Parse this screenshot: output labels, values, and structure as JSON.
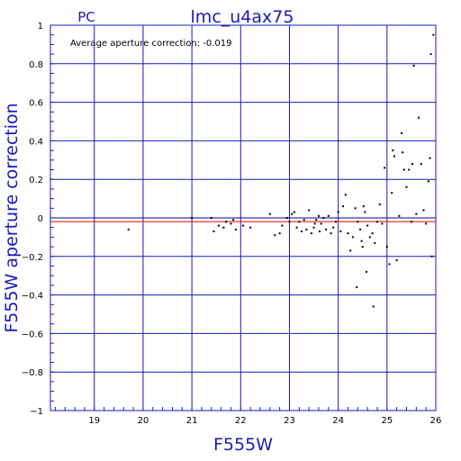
{
  "chart_data": {
    "type": "scatter",
    "instrument_label": "PC",
    "title": "lmc_u4ax75",
    "annotation": "Average aperture correction: -0.019",
    "xlabel": "F555W",
    "ylabel": "F555W aperture correction",
    "xlim": [
      18.1,
      26.0
    ],
    "ylim": [
      -1,
      1
    ],
    "x_ticks": [
      19,
      20,
      21,
      22,
      23,
      24,
      25,
      26
    ],
    "y_ticks": [
      -1,
      -0.8,
      -0.6,
      -0.4,
      -0.2,
      0,
      0.2,
      0.4,
      0.6,
      0.8,
      1
    ],
    "y_tick_labels": [
      "−1",
      "−0.8",
      "−0.6",
      "−0.4",
      "−0.2",
      "0",
      "0.2",
      "0.4",
      "0.6",
      "0.8",
      "1"
    ],
    "grid": true,
    "reference_lines": [
      {
        "y": 0,
        "color": "#0000aa"
      },
      {
        "y": -0.019,
        "color": "#e00000"
      }
    ],
    "point_color": "#000000",
    "points": [
      [
        19.7,
        -0.06
      ],
      [
        21.0,
        0.0
      ],
      [
        21.4,
        0.0
      ],
      [
        21.45,
        -0.07
      ],
      [
        21.55,
        -0.04
      ],
      [
        21.65,
        -0.05
      ],
      [
        21.7,
        -0.02
      ],
      [
        21.8,
        -0.03
      ],
      [
        21.85,
        -0.01
      ],
      [
        21.9,
        -0.06
      ],
      [
        22.05,
        -0.04
      ],
      [
        22.2,
        -0.05
      ],
      [
        22.6,
        0.02
      ],
      [
        22.7,
        -0.09
      ],
      [
        22.8,
        -0.08
      ],
      [
        22.85,
        -0.04
      ],
      [
        22.95,
        0.0
      ],
      [
        23.0,
        -0.02
      ],
      [
        23.05,
        0.02
      ],
      [
        23.1,
        0.03
      ],
      [
        23.15,
        -0.05
      ],
      [
        23.2,
        -0.02
      ],
      [
        23.25,
        -0.07
      ],
      [
        23.3,
        -0.01
      ],
      [
        23.35,
        -0.06
      ],
      [
        23.4,
        0.04
      ],
      [
        23.45,
        -0.08
      ],
      [
        23.5,
        -0.05
      ],
      [
        23.52,
        -0.03
      ],
      [
        23.55,
        -0.01
      ],
      [
        23.6,
        0.01
      ],
      [
        23.62,
        -0.07
      ],
      [
        23.65,
        -0.03
      ],
      [
        23.7,
        0.0
      ],
      [
        23.75,
        -0.06
      ],
      [
        23.8,
        0.01
      ],
      [
        23.85,
        -0.08
      ],
      [
        23.9,
        -0.05
      ],
      [
        23.95,
        -0.02
      ],
      [
        24.0,
        0.03
      ],
      [
        24.05,
        -0.07
      ],
      [
        24.1,
        0.06
      ],
      [
        24.15,
        0.12
      ],
      [
        24.2,
        -0.08
      ],
      [
        24.25,
        -0.17
      ],
      [
        24.3,
        -0.1
      ],
      [
        24.35,
        0.05
      ],
      [
        24.38,
        -0.36
      ],
      [
        24.4,
        -0.02
      ],
      [
        24.45,
        -0.06
      ],
      [
        24.48,
        -0.12
      ],
      [
        24.5,
        -0.15
      ],
      [
        24.52,
        0.06
      ],
      [
        24.55,
        0.03
      ],
      [
        24.58,
        -0.28
      ],
      [
        24.6,
        -0.04
      ],
      [
        24.65,
        -0.1
      ],
      [
        24.7,
        -0.08
      ],
      [
        24.72,
        -0.46
      ],
      [
        24.75,
        -0.13
      ],
      [
        24.8,
        -0.02
      ],
      [
        24.85,
        0.07
      ],
      [
        24.9,
        -0.03
      ],
      [
        24.95,
        0.26
      ],
      [
        25.0,
        -0.15
      ],
      [
        25.05,
        -0.24
      ],
      [
        25.1,
        0.13
      ],
      [
        25.12,
        0.35
      ],
      [
        25.15,
        0.32
      ],
      [
        25.2,
        -0.22
      ],
      [
        25.25,
        0.01
      ],
      [
        25.3,
        0.44
      ],
      [
        25.32,
        0.34
      ],
      [
        25.35,
        0.25
      ],
      [
        25.4,
        0.16
      ],
      [
        25.45,
        0.25
      ],
      [
        25.5,
        -0.02
      ],
      [
        25.52,
        0.28
      ],
      [
        25.55,
        0.79
      ],
      [
        25.6,
        0.02
      ],
      [
        25.65,
        0.52
      ],
      [
        25.7,
        0.28
      ],
      [
        25.75,
        0.04
      ],
      [
        25.8,
        -0.03
      ],
      [
        25.85,
        0.19
      ],
      [
        25.88,
        0.31
      ],
      [
        25.9,
        0.85
      ],
      [
        25.92,
        -0.2
      ],
      [
        25.95,
        0.95
      ]
    ]
  }
}
